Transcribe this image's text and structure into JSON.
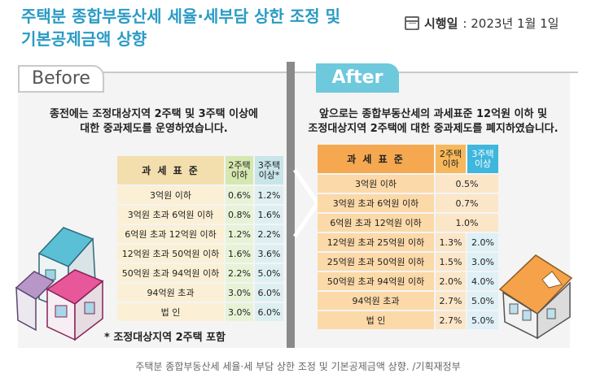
{
  "header": {
    "title_line1": "주택분 종합부동산세 세율·세부담 상한 조정 및",
    "title_line2": "기본공제금액 상향",
    "date_label": "시행일",
    "date_value": ": 2023년 1월 1일"
  },
  "before": {
    "tag": "Before",
    "desc_line1": "종전에는 조정대상지역 2주택 및 3주택 이상에",
    "desc_line2": "대한 중과제도를 운영하였습니다.",
    "table": {
      "header_std": "과 세 표 준",
      "header_2a": "2주택",
      "header_2b": "이하",
      "header_3a": "3주택",
      "header_3b": "이상*",
      "rows": [
        {
          "std": "3억원 이하",
          "v2": "0.6%",
          "v3": "1.2%"
        },
        {
          "std": "3억원 초과 6억원 이하",
          "v2": "0.8%",
          "v3": "1.6%"
        },
        {
          "std": "6억원 초과 12억원 이하",
          "v2": "1.2%",
          "v3": "2.2%"
        },
        {
          "std": "12억원 초과 50억원 이하",
          "v2": "1.6%",
          "v3": "3.6%"
        },
        {
          "std": "50억원 초과 94억원 이하",
          "v2": "2.2%",
          "v3": "5.0%"
        },
        {
          "std": "94억원 초과",
          "v2": "3.0%",
          "v3": "6.0%"
        },
        {
          "std": "법 인",
          "v2": "3.0%",
          "v3": "6.0%"
        }
      ]
    },
    "note": "* 조정대상지역 2주택 포함"
  },
  "after": {
    "tag": "After",
    "desc_line1": "앞으로는 종합부동산세의 과세표준 12억원 이하 및",
    "desc_line2": "조정대상지역 2주택에 대한 중과제도를 폐지하였습니다.",
    "table": {
      "header_std": "과 세 표 준",
      "header_2a": "2주택",
      "header_2b": "이하",
      "header_3a": "3주택",
      "header_3b": "이상",
      "merged_rows": [
        {
          "std": "3억원 이하",
          "v": "0.5%"
        },
        {
          "std": "3억원 초과 6억원 이하",
          "v": "0.7%"
        },
        {
          "std": "6억원 초과 12억원 이하",
          "v": "1.0%"
        }
      ],
      "rows": [
        {
          "std": "12억원 초과 25억원 이하",
          "v2": "1.3%",
          "v3": "2.0%"
        },
        {
          "std": "25억원 초과 50억원 이하",
          "v2": "1.5%",
          "v3": "3.0%"
        },
        {
          "std": "50억원 초과 94억원 이하",
          "v2": "2.0%",
          "v3": "4.0%"
        },
        {
          "std": "94억원 초과",
          "v2": "2.7%",
          "v3": "5.0%"
        },
        {
          "std": "법 인",
          "v2": "2.7%",
          "v3": "5.0%"
        }
      ]
    }
  },
  "caption": "주택분 종합부동산세 세율·세 부담 상한 조정 및 기본공제금액 상향. /기획재정부",
  "colors": {
    "title": "#2a9bc4",
    "after_tag": "#6ec9dd",
    "after_header": "#f5a850",
    "after_3plus": "#3fb6dc"
  }
}
